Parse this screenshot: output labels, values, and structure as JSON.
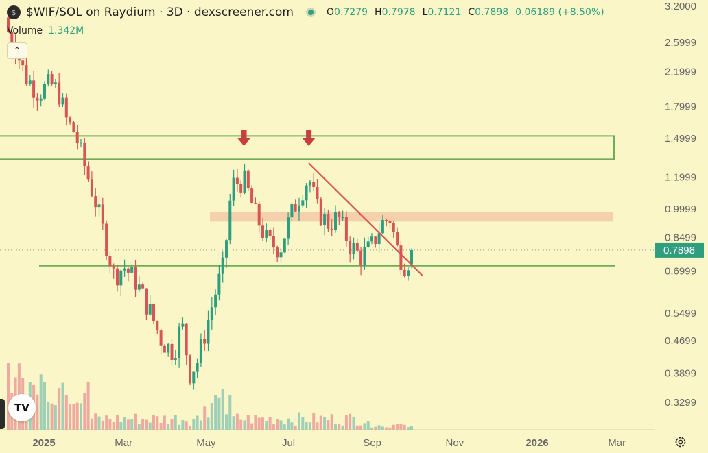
{
  "header": {
    "coin_icon": "dollar-coin-icon",
    "coin_glyph": "$",
    "title": "$WIF/SOL on Raydium · 3D · dexscreener.com",
    "open_label": "O",
    "open": "0.7279",
    "high_label": "H",
    "high": "0.7978",
    "low_label": "L",
    "low": "0.7121",
    "close_label": "C",
    "close": "0.7898",
    "change": "0.06189 (+8.50%)"
  },
  "volume": {
    "label": "Volume",
    "value": "1.342M"
  },
  "controls": {
    "collapse_glyph": "⌃",
    "logo_text": "TV",
    "settings_icon": "gear-icon"
  },
  "colors": {
    "up": "#2e9e7e",
    "down": "#d65555",
    "zone_green": "#6fae57",
    "zone_orange": "#f3c9a8",
    "trendline": "#d65555",
    "arrow": "#c93f3f"
  },
  "chart_data": {
    "type": "candlestick",
    "log_scale": true,
    "y_ticks": [
      "3.2000",
      "2.5999",
      "2.1999",
      "1.7999",
      "1.4999",
      "1.1999",
      "0.9999",
      "0.8499",
      "0.6999",
      "0.5499",
      "0.4699",
      "0.3899",
      "0.3299"
    ],
    "x_ticks": [
      "2025",
      "Mar",
      "May",
      "Jul",
      "Sep",
      "Nov",
      "2026",
      "Mar"
    ],
    "current_price_label": "0.7898",
    "close_path": [
      {
        "x": "2024-11-28",
        "y": 3.0
      },
      {
        "x": "2024-12-08",
        "y": 2.7
      },
      {
        "x": "2024-12-18",
        "y": 2.15
      },
      {
        "x": "2024-12-28",
        "y": 1.95
      },
      {
        "x": "2025-01-06",
        "y": 2.05
      },
      {
        "x": "2025-01-12",
        "y": 1.95
      },
      {
        "x": "2025-01-18",
        "y": 1.65
      },
      {
        "x": "2025-01-24",
        "y": 1.55
      },
      {
        "x": "2025-02-01",
        "y": 1.25
      },
      {
        "x": "2025-02-08",
        "y": 1.05
      },
      {
        "x": "2025-02-15",
        "y": 0.85
      },
      {
        "x": "2025-02-22",
        "y": 0.68
      },
      {
        "x": "2025-03-01",
        "y": 0.72
      },
      {
        "x": "2025-03-10",
        "y": 0.66
      },
      {
        "x": "2025-03-20",
        "y": 0.56
      },
      {
        "x": "2025-03-29",
        "y": 0.47
      },
      {
        "x": "2025-04-07",
        "y": 0.44
      },
      {
        "x": "2025-04-13",
        "y": 0.52
      },
      {
        "x": "2025-04-19",
        "y": 0.39
      },
      {
        "x": "2025-04-25",
        "y": 0.42
      },
      {
        "x": "2025-05-02",
        "y": 0.52
      },
      {
        "x": "2025-05-08",
        "y": 0.62
      },
      {
        "x": "2025-05-14",
        "y": 0.72
      },
      {
        "x": "2025-05-20",
        "y": 1.15
      },
      {
        "x": "2025-05-29",
        "y": 1.18
      },
      {
        "x": "2025-06-07",
        "y": 0.96
      },
      {
        "x": "2025-06-16",
        "y": 0.82
      },
      {
        "x": "2025-06-25",
        "y": 0.8
      },
      {
        "x": "2025-07-02",
        "y": 0.95
      },
      {
        "x": "2025-07-10",
        "y": 1.1
      },
      {
        "x": "2025-07-16",
        "y": 1.2
      },
      {
        "x": "2025-07-22",
        "y": 1.0
      },
      {
        "x": "2025-07-30",
        "y": 0.92
      },
      {
        "x": "2025-08-07",
        "y": 0.95
      },
      {
        "x": "2025-08-15",
        "y": 0.82
      },
      {
        "x": "2025-08-23",
        "y": 0.76
      },
      {
        "x": "2025-08-31",
        "y": 0.8
      },
      {
        "x": "2025-09-08",
        "y": 0.92
      },
      {
        "x": "2025-09-14",
        "y": 0.95
      },
      {
        "x": "2025-09-20",
        "y": 0.78
      },
      {
        "x": "2025-09-26",
        "y": 0.72
      },
      {
        "x": "2025-09-30",
        "y": 0.7898
      }
    ],
    "last_candle": {
      "open": 0.7279,
      "high": 0.7978,
      "low": 0.7121,
      "close": 0.7898
    },
    "resistance_zone": [
      1.33,
      1.52
    ],
    "supply_zone": [
      0.93,
      0.98
    ],
    "support_line": 0.722,
    "trendline": {
      "from": {
        "x": "2025-07-16",
        "y": 1.3
      },
      "to": {
        "x": "2025-10-08",
        "y": 0.683
      }
    },
    "arrows": [
      {
        "x": "2025-05-29"
      },
      {
        "x": "2025-07-16"
      }
    ]
  }
}
